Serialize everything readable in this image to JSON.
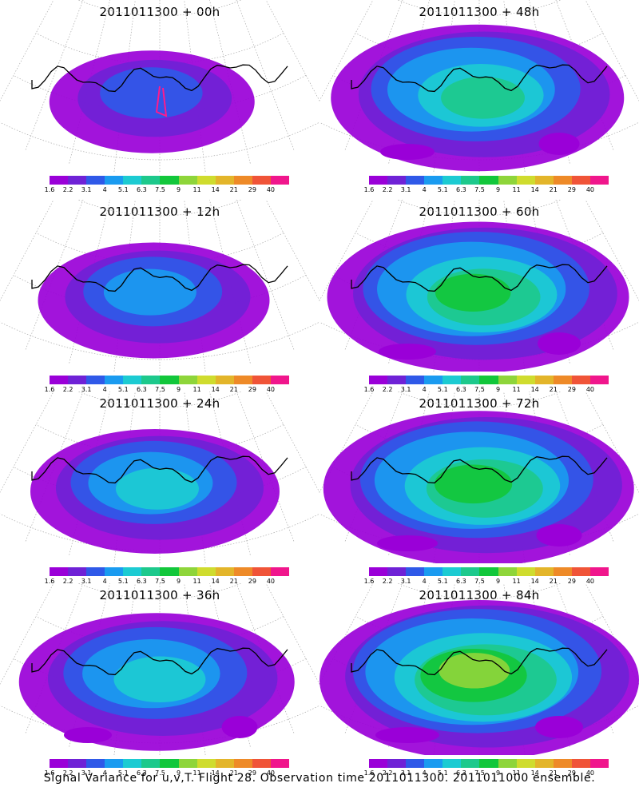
{
  "colorbar": {
    "labels": [
      "1.6",
      "2.2",
      "3.1",
      "4",
      "5.1",
      "6.3",
      "7.5",
      "9",
      "11",
      "14",
      "21",
      "29",
      "40"
    ],
    "colors": [
      "#9a00d8",
      "#6f22d6",
      "#2f59e8",
      "#1a9bf0",
      "#1ccbd2",
      "#1dc98c",
      "#12c73b",
      "#8ed53a",
      "#cfdc2e",
      "#e3b52a",
      "#ee8a28",
      "#f05438",
      "#f0168c"
    ]
  },
  "panels": [
    {
      "title": "2011011300  +  00h",
      "spread": 0.35,
      "intensity": 0.0,
      "track": true
    },
    {
      "title": "2011011300  +  48h",
      "spread": 0.85,
      "intensity": 0.55,
      "track": false
    },
    {
      "title": "2011011300  +  12h",
      "spread": 0.5,
      "intensity": 0.2,
      "track": false
    },
    {
      "title": "2011011300  +  60h",
      "spread": 0.9,
      "intensity": 0.65,
      "track": false
    },
    {
      "title": "2011011300  +  24h",
      "spread": 0.6,
      "intensity": 0.3,
      "track": false
    },
    {
      "title": "2011011300  +  72h",
      "spread": 0.95,
      "intensity": 0.7,
      "track": false
    },
    {
      "title": "2011011300  +  36h",
      "spread": 0.75,
      "intensity": 0.4,
      "track": false
    },
    {
      "title": "2011011300  +  84h",
      "spread": 1.0,
      "intensity": 0.75,
      "track": false
    }
  ],
  "footer": "Signal Variance for u,v,T. Flight 28. Observation time 2011011300. 2011011000 ensemble."
}
